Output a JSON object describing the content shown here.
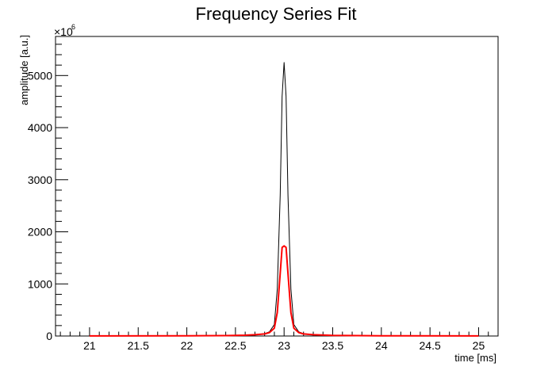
{
  "chart_data": {
    "type": "line",
    "title": "Frequency Series Fit",
    "xlabel": "time [ms]",
    "ylabel": "amplitude [a.u.]",
    "y_exponent_base": "×10",
    "y_exponent_power": "6",
    "xlim": [
      20.65,
      25.2
    ],
    "ylim": [
      0,
      5750
    ],
    "x_ticks": [
      21,
      21.5,
      22,
      22.5,
      23,
      23.5,
      24,
      24.5,
      25
    ],
    "x_tick_labels": [
      "21",
      "21.5",
      "22",
      "22.5",
      "23",
      "23.5",
      "24",
      "24.5",
      "25"
    ],
    "y_ticks": [
      0,
      1000,
      2000,
      3000,
      4000,
      5000
    ],
    "y_tick_labels": [
      "0",
      "1000",
      "2000",
      "3000",
      "4000",
      "5000"
    ],
    "grid": false,
    "legend": "none",
    "series": [
      {
        "color": "#000000",
        "stroke_width": 1,
        "x": [
          21.0,
          22.0,
          22.4,
          22.6,
          22.7,
          22.8,
          22.85,
          22.9,
          22.93,
          22.96,
          22.98,
          23.0,
          23.02,
          23.04,
          23.07,
          23.1,
          23.15,
          23.2,
          23.3,
          23.5,
          24.0,
          25.0
        ],
        "y": [
          2,
          4,
          8,
          15,
          25,
          45,
          80,
          220,
          900,
          2700,
          4600,
          5250,
          4600,
          2700,
          900,
          220,
          80,
          45,
          25,
          12,
          5,
          2
        ]
      },
      {
        "color": "#ff0000",
        "stroke_width": 2,
        "x": [
          21.0,
          22.0,
          22.4,
          22.6,
          22.7,
          22.8,
          22.85,
          22.9,
          22.93,
          22.96,
          22.98,
          23.0,
          23.02,
          23.04,
          23.07,
          23.1,
          23.15,
          23.2,
          23.3,
          23.5,
          24.0,
          25.0
        ],
        "y": [
          2,
          4,
          8,
          15,
          25,
          40,
          65,
          150,
          450,
          1200,
          1700,
          1730,
          1700,
          1200,
          450,
          150,
          65,
          40,
          25,
          12,
          5,
          2
        ]
      }
    ]
  }
}
